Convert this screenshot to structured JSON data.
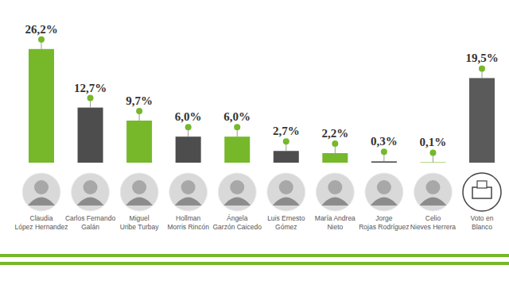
{
  "chart_data": {
    "type": "bar",
    "categories": [
      "Claudia\nLópez Hernandez",
      "Carlos Fernando\nGalán",
      "Miguel\nUribe Turbay",
      "Hollman\nMorris Rincón",
      "Ángela\nGarzón Caicedo",
      "Luis Ernesto\nGómez",
      "María Andrea\nNieto",
      "Jorge\nRojas Rodríguez",
      "Celio\nNieves Herrera",
      "Voto en\nBlanco"
    ],
    "values": [
      26.2,
      12.7,
      9.7,
      6.0,
      6.0,
      2.7,
      2.2,
      0.3,
      0.1,
      19.5
    ],
    "value_labels": [
      "26,2%",
      "12,7%",
      "9,7%",
      "6,0%",
      "6,0%",
      "2,7%",
      "2,2%",
      "0,3%",
      "0,1%",
      "19,5%"
    ],
    "colors": [
      "#76b82a",
      "#4d4d4d",
      "#76b82a",
      "#4d4d4d",
      "#76b82a",
      "#4d4d4d",
      "#76b82a",
      "#4d4d4d",
      "#76b82a",
      "#5a5a5a"
    ],
    "ylim": [
      0,
      30
    ],
    "data_labels": true,
    "tick_labels": "x"
  }
}
